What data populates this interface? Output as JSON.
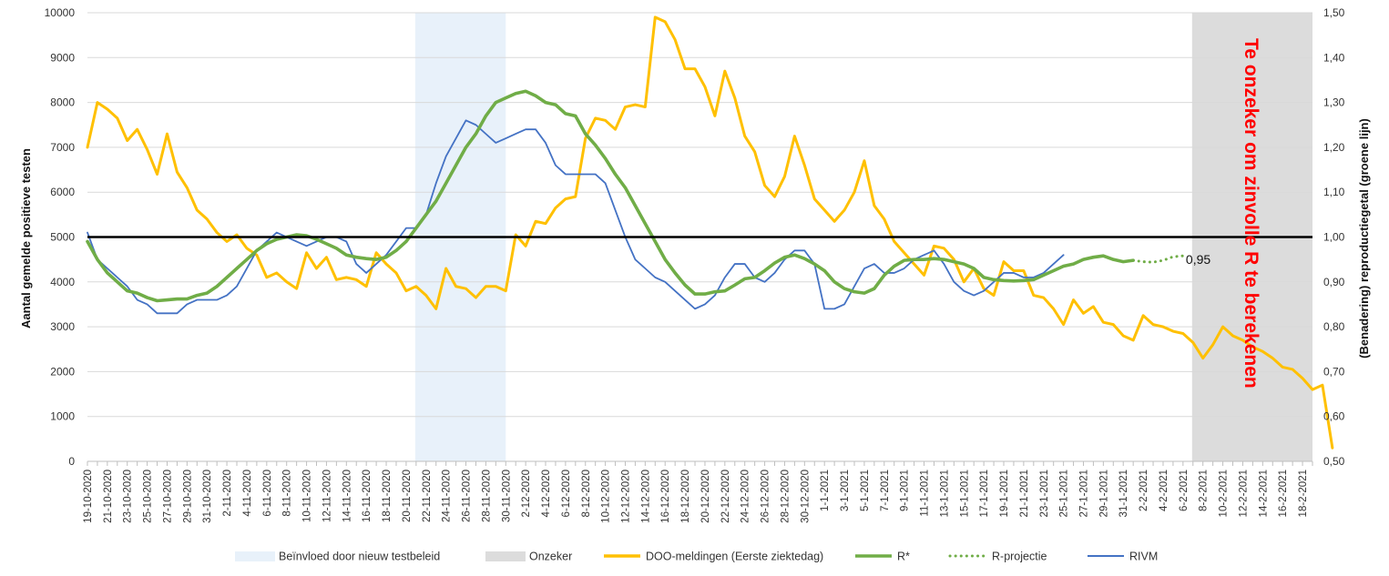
{
  "chart_data": {
    "type": "line",
    "xlabel": "",
    "ylabel_left": "Aantal gemelde positieve testen",
    "ylabel_right": "(Benadering) reproductiegetal (groene lijn)",
    "ylim_left": [
      0,
      10000
    ],
    "ylim_right": [
      0.5,
      1.5
    ],
    "yticks_left": [
      "0",
      "1000",
      "2000",
      "3000",
      "4000",
      "5000",
      "6000",
      "7000",
      "8000",
      "9000",
      "10000"
    ],
    "yticks_right": [
      "0,50",
      "0,60",
      "0,70",
      "0,80",
      "0,90",
      "1,00",
      "1,10",
      "1,20",
      "1,30",
      "1,40",
      "1,50"
    ],
    "start_date": "2020-10-19",
    "xtick_labels": [
      "19-10-2020",
      "21-10-2020",
      "23-10-2020",
      "25-10-2020",
      "27-10-2020",
      "29-10-2020",
      "31-10-2020",
      "2-11-2020",
      "4-11-2020",
      "6-11-2020",
      "8-11-2020",
      "10-11-2020",
      "12-11-2020",
      "14-11-2020",
      "16-11-2020",
      "18-11-2020",
      "20-11-2020",
      "22-11-2020",
      "24-11-2020",
      "26-11-2020",
      "28-11-2020",
      "30-11-2020",
      "2-12-2020",
      "4-12-2020",
      "6-12-2020",
      "8-12-2020",
      "10-12-2020",
      "12-12-2020",
      "14-12-2020",
      "16-12-2020",
      "18-12-2020",
      "20-12-2020",
      "22-12-2020",
      "24-12-2020",
      "26-12-2020",
      "28-12-2020",
      "30-12-2020",
      "1-1-2021",
      "3-1-2021",
      "5-1-2021",
      "7-1-2021",
      "9-1-2021",
      "11-1-2021",
      "13-1-2021",
      "15-1-2021",
      "17-1-2021",
      "19-1-2021",
      "21-1-2021",
      "23-1-2021",
      "25-1-2021",
      "27-1-2021",
      "29-1-2021",
      "31-1-2021",
      "2-2-2021",
      "4-2-2021",
      "6-2-2021",
      "8-2-2021",
      "10-2-2021",
      "12-2-2021",
      "14-2-2021",
      "16-2-2021",
      "18-2-2021"
    ],
    "reference_line": {
      "value": 1.0,
      "axis": "right",
      "color": "#000000"
    },
    "bands": [
      {
        "name": "Beïnvloed door nieuw testbeleid",
        "from": "2020-11-21",
        "to": "2020-11-30",
        "color": "#e8f1fa"
      },
      {
        "name": "Onzeker",
        "from": "2021-02-07",
        "to": "2021-02-19",
        "color": "#dcdcdc"
      }
    ],
    "annotations": [
      {
        "text": "0,95",
        "date": "2021-02-05",
        "value": 0.95,
        "axis": "right",
        "color": "#111111"
      },
      {
        "text": "Te onzeker om zinvolle R te berekenen",
        "color": "#ff0000",
        "orientation": "vertical"
      }
    ],
    "series": [
      {
        "name": "DOO-meldingen (Eerste ziektedag)",
        "axis": "left",
        "color": "#ffc000",
        "style": "solid",
        "start": "2020-10-19",
        "values": [
          7000,
          8000,
          7850,
          7650,
          7150,
          7400,
          6950,
          6400,
          7300,
          6450,
          6100,
          5600,
          5400,
          5100,
          4900,
          5050,
          4750,
          4600,
          4100,
          4200,
          4000,
          3850,
          4650,
          4300,
          4550,
          4050,
          4100,
          4050,
          3900,
          4650,
          4400,
          4200,
          3800,
          3900,
          3700,
          3400,
          4300,
          3900,
          3850,
          3650,
          3900,
          3900,
          3800,
          5050,
          4800,
          5350,
          5300,
          5650,
          5850,
          5900,
          7200,
          7650,
          7600,
          7400,
          7900,
          7950,
          7900,
          9900,
          9800,
          9400,
          8750,
          8750,
          8350,
          7700,
          8700,
          8100,
          7250,
          6900,
          6150,
          5900,
          6350,
          7250,
          6600,
          5850,
          5600,
          5350,
          5600,
          6000,
          6700,
          5700,
          5400,
          4900,
          4650,
          4400,
          4150,
          4800,
          4750,
          4500,
          4000,
          4300,
          3850,
          3700,
          4450,
          4250,
          4250,
          3700,
          3650,
          3400,
          3050,
          3600,
          3300,
          3450,
          3100,
          3050,
          2800,
          2700,
          3250,
          3050,
          3000,
          2900,
          2850,
          2650,
          2300,
          2600,
          3000,
          2800,
          2700,
          2550,
          2450,
          2300,
          2100,
          2050,
          1850,
          1600,
          1700,
          300
        ]
      },
      {
        "name": "R*",
        "axis": "right",
        "color": "#70ad47",
        "style": "solid",
        "start": "2020-10-19",
        "values": [
          0.99,
          0.95,
          0.92,
          0.9,
          0.88,
          0.875,
          0.865,
          0.858,
          0.86,
          0.862,
          0.862,
          0.87,
          0.875,
          0.89,
          0.91,
          0.93,
          0.95,
          0.97,
          0.985,
          0.995,
          1.0,
          1.005,
          1.003,
          0.995,
          0.985,
          0.975,
          0.96,
          0.955,
          0.952,
          0.95,
          0.955,
          0.97,
          0.99,
          1.02,
          1.05,
          1.08,
          1.12,
          1.16,
          1.2,
          1.23,
          1.27,
          1.3,
          1.31,
          1.32,
          1.325,
          1.315,
          1.3,
          1.295,
          1.275,
          1.27,
          1.23,
          1.205,
          1.175,
          1.14,
          1.11,
          1.07,
          1.03,
          0.99,
          0.95,
          0.92,
          0.893,
          0.873,
          0.873,
          0.878,
          0.88,
          0.893,
          0.907,
          0.91,
          0.925,
          0.942,
          0.955,
          0.96,
          0.952,
          0.94,
          0.925,
          0.9,
          0.885,
          0.878,
          0.875,
          0.885,
          0.915,
          0.935,
          0.948,
          0.95,
          0.95,
          0.952,
          0.95,
          0.945,
          0.94,
          0.93,
          0.91,
          0.905,
          0.903,
          0.902,
          0.903,
          0.905,
          0.915,
          0.925,
          0.935,
          0.94,
          0.95,
          0.955,
          0.958,
          0.95,
          0.945,
          0.948
        ]
      },
      {
        "name": "R-projectie",
        "axis": "right",
        "color": "#70ad47",
        "style": "dotted",
        "start": "2021-02-01",
        "values": [
          0.948,
          0.945,
          0.944,
          0.948,
          0.956,
          0.958
        ]
      },
      {
        "name": "RIVM",
        "axis": "right",
        "color": "#4472c4",
        "style": "solid",
        "start": "2020-10-19",
        "values": [
          1.01,
          0.95,
          0.93,
          0.91,
          0.89,
          0.86,
          0.85,
          0.83,
          0.83,
          0.83,
          0.85,
          0.86,
          0.86,
          0.86,
          0.87,
          0.89,
          0.93,
          0.97,
          0.99,
          1.01,
          1.0,
          0.99,
          0.98,
          0.99,
          1.0,
          1.0,
          0.99,
          0.94,
          0.92,
          0.94,
          0.96,
          0.99,
          1.02,
          1.02,
          1.05,
          1.12,
          1.18,
          1.22,
          1.26,
          1.25,
          1.23,
          1.21,
          1.22,
          1.23,
          1.24,
          1.24,
          1.21,
          1.16,
          1.14,
          1.14,
          1.14,
          1.14,
          1.12,
          1.06,
          1.0,
          0.95,
          0.93,
          0.91,
          0.9,
          0.88,
          0.86,
          0.84,
          0.85,
          0.87,
          0.91,
          0.94,
          0.94,
          0.91,
          0.9,
          0.92,
          0.95,
          0.97,
          0.97,
          0.94,
          0.84,
          0.84,
          0.85,
          0.89,
          0.93,
          0.94,
          0.92,
          0.92,
          0.93,
          0.95,
          0.96,
          0.97,
          0.94,
          0.9,
          0.88,
          0.87,
          0.88,
          0.9,
          0.92,
          0.92,
          0.91,
          0.91,
          0.92,
          0.94,
          0.96
        ]
      }
    ],
    "legend": {
      "placement": "bottom",
      "entries": [
        {
          "label": "Beïnvloed door nieuw testbeleid",
          "symbol": "band",
          "color": "#e8f1fa"
        },
        {
          "label": "Onzeker",
          "symbol": "band",
          "color": "#dcdcdc"
        },
        {
          "label": "DOO-meldingen (Eerste ziektedag)",
          "symbol": "line",
          "color": "#ffc000"
        },
        {
          "label": "R*",
          "symbol": "line",
          "color": "#70ad47"
        },
        {
          "label": "R-projectie",
          "symbol": "dots",
          "color": "#70ad47"
        },
        {
          "label": "RIVM",
          "symbol": "thin-line",
          "color": "#4472c4"
        }
      ]
    },
    "grid": "horizontal"
  }
}
